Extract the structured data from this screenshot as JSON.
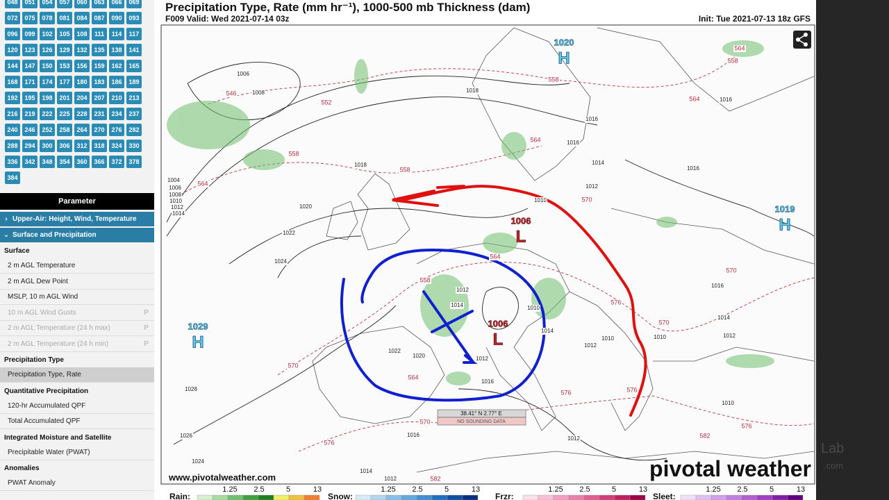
{
  "sidebar": {
    "hours": [
      "048",
      "051",
      "054",
      "057",
      "060",
      "063",
      "066",
      "069",
      "072",
      "075",
      "078",
      "081",
      "084",
      "087",
      "090",
      "093",
      "096",
      "099",
      "102",
      "105",
      "108",
      "111",
      "114",
      "117",
      "120",
      "123",
      "126",
      "129",
      "132",
      "135",
      "138",
      "141",
      "144",
      "147",
      "150",
      "153",
      "156",
      "159",
      "162",
      "165",
      "168",
      "171",
      "174",
      "177",
      "180",
      "183",
      "186",
      "189",
      "192",
      "195",
      "198",
      "201",
      "204",
      "207",
      "210",
      "213",
      "216",
      "219",
      "222",
      "225",
      "228",
      "231",
      "234",
      "237",
      "240",
      "246",
      "252",
      "258",
      "264",
      "270",
      "276",
      "282",
      "288",
      "294",
      "300",
      "306",
      "312",
      "318",
      "324",
      "330",
      "336",
      "342",
      "348",
      "354",
      "360",
      "366",
      "372",
      "378",
      "384"
    ],
    "parameter_header": "Parameter",
    "categories": [
      "Upper-Air: Height, Wind, Temperature",
      "Surface and Precipitation"
    ],
    "sections": [
      {
        "title": "Surface",
        "items": [
          {
            "label": "2 m AGL Temperature"
          },
          {
            "label": "2 m AGL Dew Point"
          },
          {
            "label": "MSLP, 10 m AGL Wind"
          },
          {
            "label": "10 m AGL Wind Gusts",
            "badge": "P"
          },
          {
            "label": "2 m AGL Temperature (24 h max)",
            "badge": "P"
          },
          {
            "label": "2 m AGL Temperature (24 h min)",
            "badge": "P"
          }
        ]
      },
      {
        "title": "Precipitation Type",
        "items": [
          {
            "label": "Precipitation Type, Rate",
            "selected": true
          }
        ]
      },
      {
        "title": "Quantitative Precipitation",
        "items": [
          {
            "label": "120-hr Accumulated QPF"
          },
          {
            "label": "Total Accumulated QPF"
          }
        ]
      },
      {
        "title": "Integrated Moisture and Satellite",
        "items": [
          {
            "label": "Precipitable Water (PWAT)"
          }
        ]
      },
      {
        "title": "Anomalies",
        "items": [
          {
            "label": "PWAT Anomaly"
          }
        ]
      }
    ]
  },
  "map": {
    "title": "Precipitation Type, Rate (mm hr⁻¹), 1000-500 mb Thickness (dam)",
    "valid": "F009 Valid: Wed 2021-07-14 03z",
    "init": "Init: Tue 2021-07-13 18z GFS",
    "centers": [
      {
        "type": "H",
        "pressure": "1020"
      },
      {
        "type": "H",
        "pressure": "1019"
      },
      {
        "type": "H",
        "pressure": "1029"
      },
      {
        "type": "L",
        "pressure": "1006"
      },
      {
        "type": "L",
        "pressure": "1006"
      }
    ],
    "isobar_labels": [
      "1006",
      "1008",
      "1018",
      "1018",
      "1004",
      "1006",
      "1008",
      "1010",
      "1012",
      "1014",
      "1020",
      "1022",
      "1024",
      "1012",
      "1014",
      "1010",
      "1012",
      "1010",
      "1022",
      "1020",
      "1012",
      "1016",
      "1028",
      "1026",
      "1024",
      "1016",
      "1014",
      "1012",
      "1012",
      "1016",
      "1016",
      "1014",
      "1012",
      "1010",
      "1016",
      "1016",
      "1016",
      "1014",
      "1012",
      "1010",
      "1010",
      "1014"
    ],
    "thickness_labels": [
      "546",
      "552",
      "558",
      "558",
      "564",
      "558",
      "564",
      "570",
      "564",
      "558",
      "570",
      "564",
      "558",
      "570",
      "576",
      "570",
      "564",
      "576",
      "576",
      "570",
      "576",
      "582",
      "582",
      "576",
      "564"
    ],
    "probe": {
      "coords": "38.41° N 2.77° E",
      "note": "NO SOUNDING DATA"
    },
    "website": "www.pivotalweather.com",
    "logo": "pivotal weather",
    "overlay_text": [
      "Lab",
      ".com"
    ]
  },
  "legend": [
    {
      "name": "Rain:",
      "ticks": [
        "1.25",
        "2.5",
        "5",
        "13"
      ]
    },
    {
      "name": "Snow:",
      "ticks": [
        "1.25",
        "2.5",
        "5",
        "13"
      ]
    },
    {
      "name": "Frzr:",
      "ticks": [
        "1.25",
        "2.5",
        "5",
        "13"
      ]
    },
    {
      "name": "Sleet:",
      "ticks": [
        "1.25",
        "2.5",
        "5",
        "13"
      ]
    }
  ]
}
